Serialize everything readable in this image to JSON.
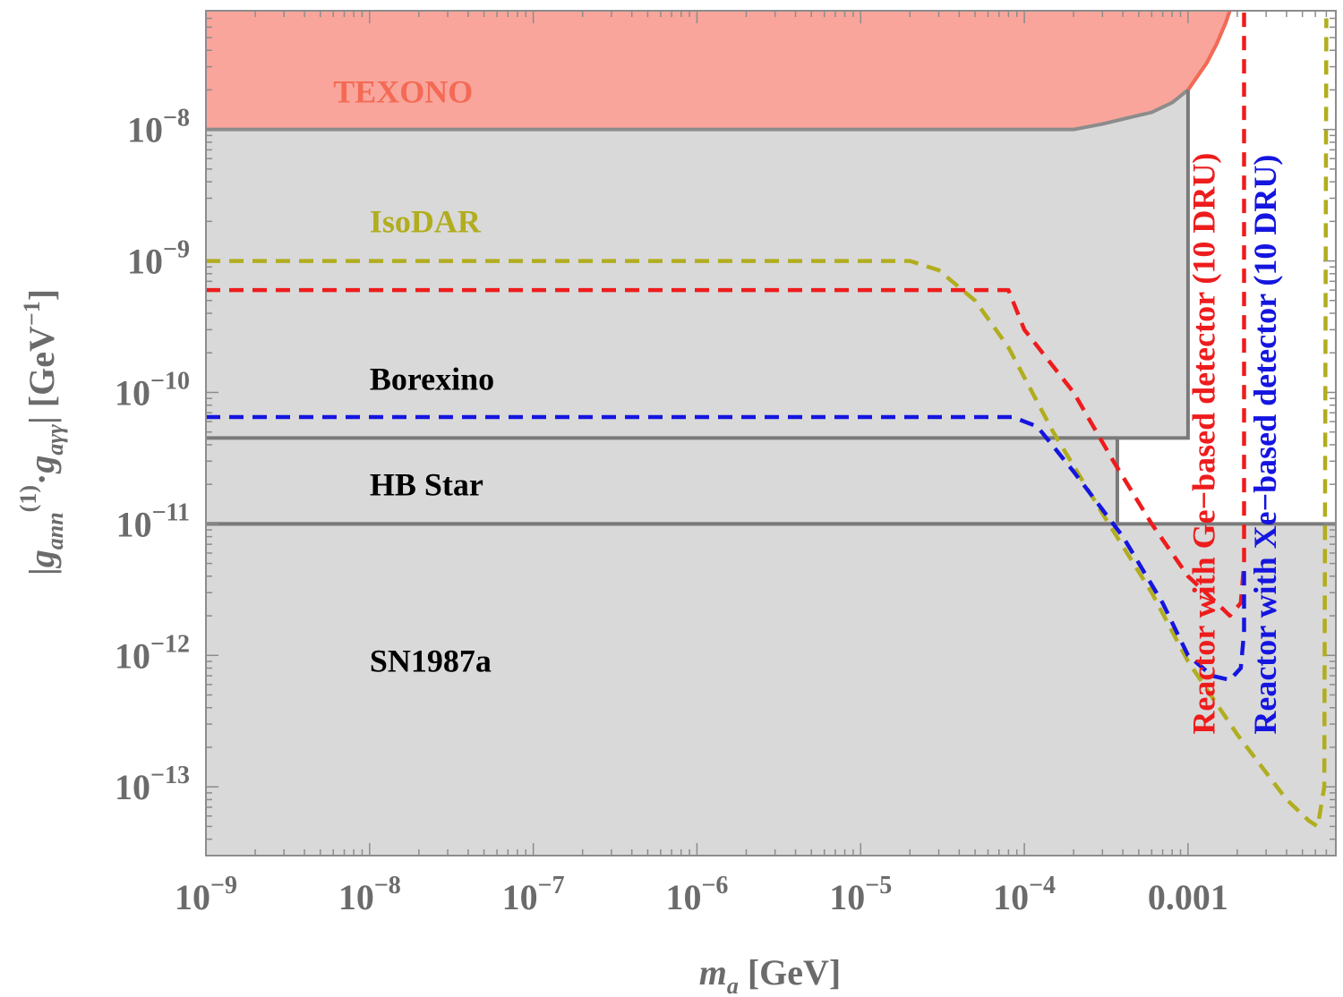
{
  "chart_data": {
    "type": "line",
    "xlabel": "m_a [GeV]",
    "ylabel": "|g_ann^(1) · g_aγγ| [GeV^-1]",
    "xscale": "log",
    "yscale": "log",
    "xlim": [
      1e-09,
      0.008
    ],
    "ylim": [
      3e-14,
      8e-08
    ],
    "x_ticks": [
      {
        "value": 1e-09,
        "label": "10−9",
        "base": "10",
        "exp": "−9"
      },
      {
        "value": 1e-08,
        "label": "10−8",
        "base": "10",
        "exp": "−8"
      },
      {
        "value": 1e-07,
        "label": "10−7",
        "base": "10",
        "exp": "−7"
      },
      {
        "value": 1e-06,
        "label": "10−6",
        "base": "10",
        "exp": "−6"
      },
      {
        "value": 1e-05,
        "label": "10−5",
        "base": "10",
        "exp": "−5"
      },
      {
        "value": 0.0001,
        "label": "10−4",
        "base": "10",
        "exp": "−4"
      },
      {
        "value": 0.001,
        "label": "0.001",
        "base": "0.001",
        "exp": ""
      }
    ],
    "y_ticks": [
      {
        "value": 1e-08,
        "label": "10−8",
        "base": "10",
        "exp": "−8"
      },
      {
        "value": 1e-09,
        "label": "10−9",
        "base": "10",
        "exp": "−9"
      },
      {
        "value": 1e-10,
        "label": "10−10",
        "base": "10",
        "exp": "−10"
      },
      {
        "value": 1e-11,
        "label": "10−11",
        "base": "10",
        "exp": "−11"
      },
      {
        "value": 1e-12,
        "label": "10−12",
        "base": "10",
        "exp": "−12"
      },
      {
        "value": 1e-13,
        "label": "10−13",
        "base": "10",
        "exp": "−13"
      }
    ],
    "regions": [
      {
        "name": "TEXONO",
        "label": "TEXONO",
        "fill": "#f9a59b",
        "stroke": "#f46a55",
        "label_color": "#f46a55",
        "label_at": {
          "x": 6e-09,
          "y": 1.6e-08
        },
        "boundary": [
          [
            1e-09,
            1e-08
          ],
          [
            1e-05,
            1e-08
          ],
          [
            0.0001,
            1e-08
          ],
          [
            0.0002,
            1e-08
          ],
          [
            0.0003,
            1.1e-08
          ],
          [
            0.0004,
            1.2e-08
          ],
          [
            0.0006,
            1.35e-08
          ],
          [
            0.0008,
            1.6e-08
          ],
          [
            0.001,
            2e-08
          ],
          [
            0.0013,
            3.2e-08
          ],
          [
            0.0015,
            4.5e-08
          ],
          [
            0.0017,
            6.5e-08
          ],
          [
            0.0018,
            8e-08
          ]
        ]
      },
      {
        "name": "Borexino",
        "label": "Borexino",
        "fill": "#d9d9d9",
        "stroke": "#7a7a7a",
        "label_color": "#000000",
        "label_at": {
          "x": 1e-08,
          "y": 1.05e-10
        },
        "boundary": [
          [
            1e-09,
            4.5e-11
          ],
          [
            0.001,
            4.5e-11
          ],
          [
            0.001,
            2e-08
          ]
        ]
      },
      {
        "name": "HB Star",
        "label": "HB Star",
        "fill": "#d9d9d9",
        "stroke": "#7a7a7a",
        "label_color": "#000000",
        "label_at": {
          "x": 1e-08,
          "y": 1.65e-11
        },
        "boundary": [
          [
            1e-09,
            1e-11
          ],
          [
            0.00037,
            1e-11
          ],
          [
            0.00037,
            4.5e-11
          ]
        ]
      },
      {
        "name": "SN1987a",
        "label": "SN1987a",
        "fill": "#d9d9d9",
        "stroke": "#7a7a7a",
        "label_color": "#000000",
        "label_at": {
          "x": 1e-08,
          "y": 7.5e-13
        },
        "boundary": [
          [
            1e-09,
            1e-11
          ],
          [
            0.008,
            1e-11
          ]
        ]
      }
    ],
    "series": [
      {
        "name": "IsoDAR",
        "label": "IsoDAR",
        "color": "#b1ad1e",
        "style": "dashed",
        "label_at": {
          "x": 1e-08,
          "y": 1.65e-09
        },
        "x": [
          1e-09,
          2e-05,
          3e-05,
          5e-05,
          8e-05,
          0.00015,
          0.0003,
          0.0006,
          0.001,
          0.002,
          0.004,
          0.0055,
          0.0062,
          0.0068,
          0.007
        ],
        "y": [
          1e-09,
          1e-09,
          8.5e-10,
          5e-10,
          2.2e-10,
          5e-11,
          1.2e-11,
          3e-12,
          9e-13,
          2.5e-13,
          8e-14,
          5.5e-14,
          5e-14,
          1e-13,
          7e-08
        ]
      },
      {
        "name": "Reactor with Ge-based detector (10 DRU)",
        "label": "Reactor with Ge−based detector (10 DRU)",
        "color": "#ee1c1c",
        "style": "dashed",
        "label_at": {
          "x": 0.00145,
          "y": 1.2e-12
        },
        "x": [
          1e-09,
          8e-05,
          0.0001,
          0.0002,
          0.00035,
          0.0006,
          0.001,
          0.0015,
          0.0018,
          0.0021,
          0.0022,
          0.0022
        ],
        "y": [
          6e-10,
          6e-10,
          3e-10,
          1e-10,
          3e-11,
          1e-11,
          4e-12,
          2.5e-12,
          2e-12,
          2.5e-12,
          5e-12,
          8e-08
        ]
      },
      {
        "name": "Reactor with Xe-based detector (10 DRU)",
        "label": "Reactor with Xe−based detector (10 DRU)",
        "color": "#1515e0",
        "style": "dashed",
        "label_at": {
          "x": 0.00345,
          "y": 1.2e-12
        },
        "x": [
          1e-09,
          8.5e-05,
          0.00012,
          0.0002,
          0.0004,
          0.0007,
          0.001,
          0.0014,
          0.0018,
          0.0021,
          0.0022,
          0.0022
        ],
        "y": [
          6.5e-11,
          6.5e-11,
          5.5e-11,
          2.5e-11,
          8e-12,
          2.5e-12,
          1e-12,
          7e-13,
          6.5e-13,
          8e-13,
          1.5e-12,
          5e-12
        ]
      }
    ]
  }
}
